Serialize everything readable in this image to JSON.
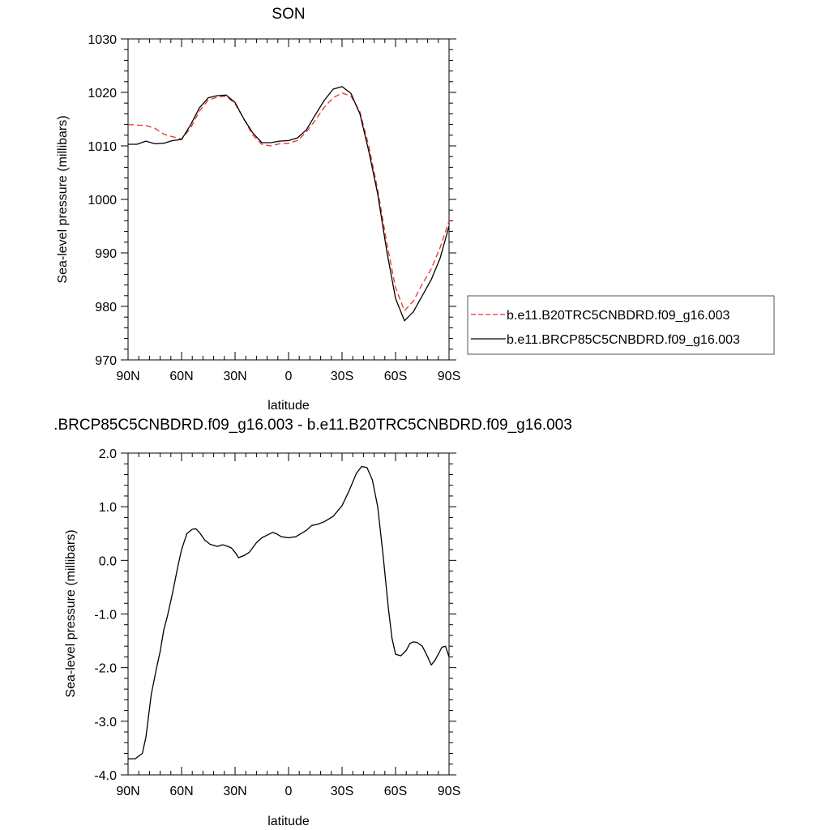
{
  "chart_data": [
    {
      "type": "line",
      "title": "SON",
      "xlabel": "latitude",
      "ylabel": "Sea-level pressure (millibars)",
      "xlim": [
        90,
        -90
      ],
      "ylim": [
        970,
        1030
      ],
      "x_tick_values": [
        90,
        60,
        30,
        0,
        -30,
        -60,
        -90
      ],
      "x_tick_labels": [
        "90N",
        "60N",
        "30N",
        "0",
        "30S",
        "60S",
        "90S"
      ],
      "y_tick_values": [
        970,
        980,
        990,
        1000,
        1010,
        1020,
        1030
      ],
      "y_tick_labels": [
        "970",
        "980",
        "990",
        "1000",
        "1010",
        "1020",
        "1030"
      ],
      "legend_position": "right",
      "series": [
        {
          "name": "b.e11.B20TRC5CNBDRD.f09_g16.003",
          "color": "#e8302a",
          "dash": "dashed",
          "x": [
            90,
            80,
            75,
            70,
            65,
            60,
            55,
            50,
            45,
            40,
            35,
            30,
            25,
            20,
            15,
            10,
            5,
            0,
            -5,
            -10,
            -15,
            -20,
            -25,
            -30,
            -35,
            -40,
            -45,
            -50,
            -55,
            -60,
            -65,
            -70,
            -75,
            -80,
            -85,
            -90
          ],
          "y": [
            1014.0,
            1013.8,
            1013.3,
            1012.2,
            1011.7,
            1011.3,
            1013.3,
            1016.5,
            1018.6,
            1019.1,
            1019.3,
            1017.9,
            1015.0,
            1012.0,
            1010.3,
            1010.0,
            1010.4,
            1010.5,
            1011.0,
            1012.6,
            1014.8,
            1017.2,
            1019.0,
            1019.9,
            1019.3,
            1016.4,
            1010.0,
            1001.8,
            992.0,
            983.5,
            979.2,
            981.0,
            984.2,
            987.0,
            991.0,
            996.0
          ]
        },
        {
          "name": "b.e11.BRCP85C5CNBDRD.f09_g16.003",
          "color": "#000000",
          "dash": "solid",
          "x": [
            90,
            85,
            80,
            75,
            70,
            65,
            60,
            55,
            50,
            45,
            40,
            35,
            30,
            25,
            20,
            15,
            10,
            5,
            0,
            -5,
            -10,
            -15,
            -20,
            -25,
            -30,
            -35,
            -40,
            -45,
            -50,
            -55,
            -60,
            -65,
            -70,
            -75,
            -80,
            -85,
            -90
          ],
          "y": [
            1010.3,
            1010.3,
            1010.9,
            1010.4,
            1010.5,
            1011.0,
            1011.2,
            1013.9,
            1017.1,
            1019.0,
            1019.4,
            1019.5,
            1018.1,
            1015.0,
            1012.4,
            1010.6,
            1010.6,
            1010.9,
            1011.0,
            1011.5,
            1013.0,
            1015.8,
            1018.5,
            1020.6,
            1021.1,
            1019.8,
            1016.0,
            1009.0,
            1001.0,
            990.5,
            981.5,
            977.3,
            979.0,
            982.0,
            985.0,
            989.0,
            995.0
          ]
        }
      ]
    },
    {
      "type": "line",
      "title": ".BRCP85C5CNBDRD.f09_g16.003 - b.e11.B20TRC5CNBDRD.f09_g16.003",
      "xlabel": "latitude",
      "ylabel": "Sea-level pressure (millibars)",
      "xlim": [
        90,
        -90
      ],
      "ylim": [
        -4.0,
        2.0
      ],
      "x_tick_values": [
        90,
        60,
        30,
        0,
        -30,
        -60,
        -90
      ],
      "x_tick_labels": [
        "90N",
        "60N",
        "30N",
        "0",
        "30S",
        "60S",
        "90S"
      ],
      "y_tick_values": [
        -4.0,
        -3.0,
        -2.0,
        -1.0,
        0.0,
        1.0,
        2.0
      ],
      "y_tick_labels": [
        "-4.0",
        "-3.0",
        "-2.0",
        "-1.0",
        "0.0",
        "1.0",
        "2.0"
      ],
      "series": [
        {
          "color": "#000000",
          "dash": "solid",
          "x": [
            90,
            86,
            82,
            80,
            77,
            74,
            72,
            70,
            68,
            65,
            62,
            60,
            57,
            54,
            52,
            50,
            47,
            44,
            40,
            37,
            34,
            32,
            30,
            28,
            25,
            22,
            20,
            18,
            15,
            12,
            9,
            7,
            4,
            0,
            -4,
            -7,
            -10,
            -13,
            -16,
            -20,
            -25,
            -30,
            -34,
            -38,
            -41,
            -44,
            -47,
            -50,
            -53,
            -56,
            -58,
            -60,
            -63,
            -66,
            -68,
            -70,
            -72,
            -75,
            -78,
            -80,
            -82,
            -84,
            -86,
            -88,
            -90
          ],
          "y": [
            -3.7,
            -3.7,
            -3.6,
            -3.3,
            -2.5,
            -2.0,
            -1.7,
            -1.3,
            -1.05,
            -0.6,
            -0.1,
            0.2,
            0.5,
            0.58,
            0.59,
            0.52,
            0.38,
            0.3,
            0.26,
            0.29,
            0.26,
            0.23,
            0.15,
            0.05,
            0.09,
            0.15,
            0.24,
            0.33,
            0.42,
            0.47,
            0.52,
            0.5,
            0.44,
            0.42,
            0.44,
            0.5,
            0.56,
            0.65,
            0.67,
            0.72,
            0.82,
            1.02,
            1.3,
            1.62,
            1.75,
            1.73,
            1.5,
            1.0,
            0.1,
            -0.9,
            -1.45,
            -1.75,
            -1.78,
            -1.68,
            -1.55,
            -1.52,
            -1.53,
            -1.6,
            -1.8,
            -1.95,
            -1.87,
            -1.75,
            -1.62,
            -1.6,
            -1.8
          ]
        }
      ]
    }
  ]
}
